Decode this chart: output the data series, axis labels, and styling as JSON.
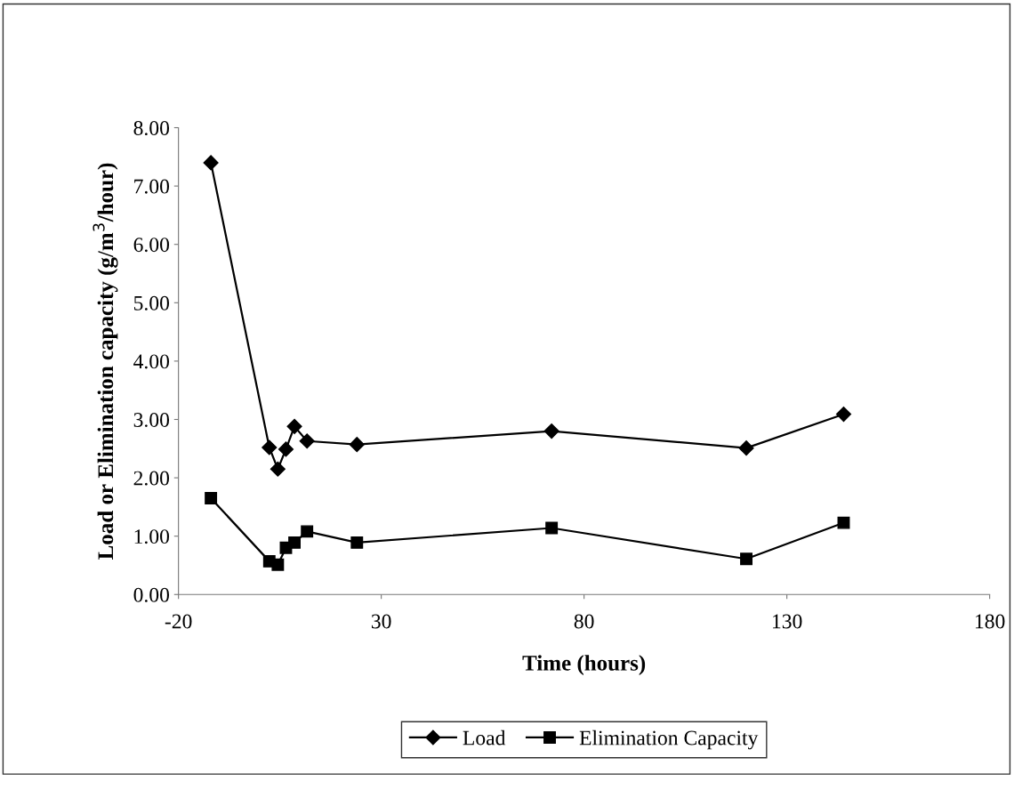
{
  "chart_data": {
    "type": "line",
    "xlabel": "Time (hours)",
    "ylabel": "Load or Elimination capacity (g/m$^{3}$/hour)",
    "x": [
      -12,
      2.4,
      4.5,
      6.5,
      8.6,
      11.7,
      24,
      72,
      120,
      144
    ],
    "series": [
      {
        "name": "Load",
        "color": "#000000",
        "marker": "diamond",
        "values": [
          7.4,
          2.52,
          2.15,
          2.49,
          2.88,
          2.63,
          2.57,
          2.8,
          2.51,
          3.09
        ]
      },
      {
        "name": "Elimination Capacity",
        "color": "#000000",
        "marker": "square",
        "values": [
          1.65,
          0.57,
          0.51,
          0.8,
          0.89,
          1.08,
          0.89,
          1.14,
          0.61,
          1.23
        ]
      }
    ],
    "xlim": [
      -20,
      180
    ],
    "xticks": [
      -20,
      30,
      80,
      130,
      180
    ],
    "ylim": [
      0,
      8
    ],
    "yticks": [
      {
        "value": 0,
        "label": "0.00"
      },
      {
        "value": 1,
        "label": "1.00"
      },
      {
        "value": 2,
        "label": "2.00"
      },
      {
        "value": 3,
        "label": "3.00"
      },
      {
        "value": 4,
        "label": "4.00"
      },
      {
        "value": 5,
        "label": "5.00"
      },
      {
        "value": 6,
        "label": "6.00"
      },
      {
        "value": 7,
        "label": "7.00"
      },
      {
        "value": 8,
        "label": "8.00"
      }
    ],
    "grid": false,
    "legend": "bottom",
    "line_style": "solid"
  }
}
